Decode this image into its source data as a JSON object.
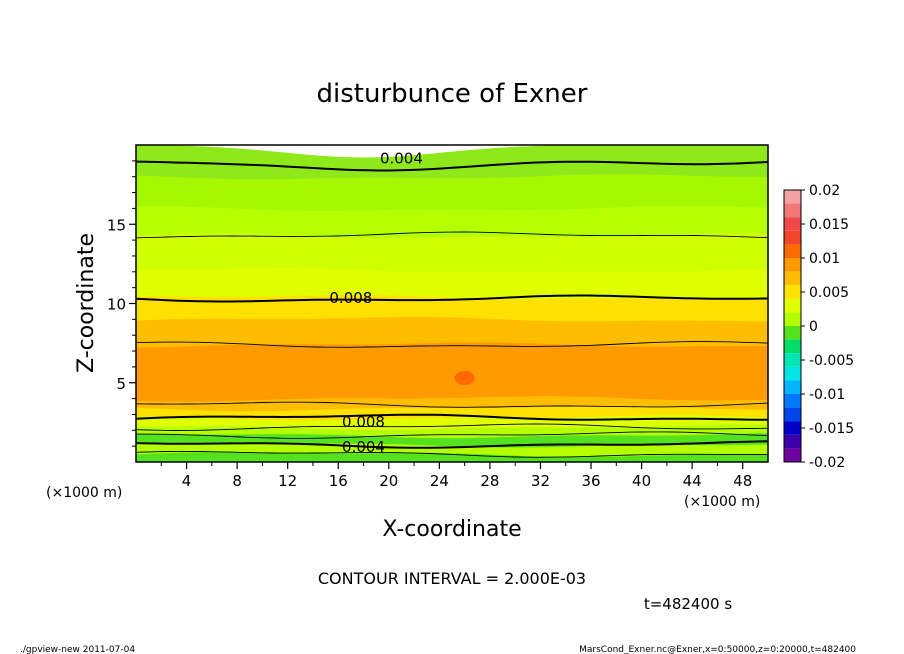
{
  "chart_data": {
    "type": "heatmap",
    "subtype": "filled-contour",
    "title": "disturbunce of Exner",
    "xlabel": "X-coordinate",
    "ylabel": "Z-coordinate",
    "x_unit": "(×1000 m)",
    "x_unit_right": "(×1000 m)",
    "xlim": [
      0,
      50
    ],
    "ylim": [
      0,
      20
    ],
    "x_ticks": [
      4,
      8,
      12,
      16,
      20,
      24,
      28,
      32,
      36,
      40,
      44,
      48
    ],
    "y_ticks": [
      5,
      10,
      15
    ],
    "contour_interval_text": "CONTOUR INTERVAL = 2.000E-03",
    "time_text": "t=482400 s",
    "contour_labels": [
      {
        "text": "0.004",
        "x": 21,
        "z": 19.2
      },
      {
        "text": "0.008",
        "x": 17,
        "z": 10.4
      },
      {
        "text": "0.008",
        "x": 18,
        "z": 2.6
      },
      {
        "text": "0.004",
        "x": 18,
        "z": 1.0
      }
    ],
    "colorbar": {
      "ticks": [
        "0.02",
        "0.015",
        "0.01",
        "0.005",
        "0",
        "-0.005",
        "-0.01",
        "-0.015",
        "-0.02"
      ],
      "levels": [
        {
          "from": 0.018,
          "to": 0.02,
          "color": "#f4a2a2"
        },
        {
          "from": 0.016,
          "to": 0.018,
          "color": "#f27878"
        },
        {
          "from": 0.014,
          "to": 0.016,
          "color": "#ef4848"
        },
        {
          "from": 0.012,
          "to": 0.014,
          "color": "#f1462a"
        },
        {
          "from": 0.01,
          "to": 0.012,
          "color": "#ff6a00"
        },
        {
          "from": 0.008,
          "to": 0.01,
          "color": "#ff9a00"
        },
        {
          "from": 0.006,
          "to": 0.008,
          "color": "#ffbd00"
        },
        {
          "from": 0.004,
          "to": 0.006,
          "color": "#ffe100"
        },
        {
          "from": 0.002,
          "to": 0.004,
          "color": "#e0ff00"
        },
        {
          "from": 0.0,
          "to": 0.002,
          "color": "#b4ff00"
        },
        {
          "from": -0.002,
          "to": 0.0,
          "color": "#55e21e"
        },
        {
          "from": -0.004,
          "to": -0.002,
          "color": "#00dc64"
        },
        {
          "from": -0.006,
          "to": -0.004,
          "color": "#00e6b4"
        },
        {
          "from": -0.008,
          "to": -0.006,
          "color": "#00e6e6"
        },
        {
          "from": -0.01,
          "to": -0.008,
          "color": "#00b4ff"
        },
        {
          "from": -0.012,
          "to": -0.01,
          "color": "#0078ff"
        },
        {
          "from": -0.014,
          "to": -0.012,
          "color": "#0046e6"
        },
        {
          "from": -0.016,
          "to": -0.014,
          "color": "#0000c8"
        },
        {
          "from": -0.018,
          "to": -0.016,
          "color": "#3c00aa"
        },
        {
          "from": -0.02,
          "to": -0.018,
          "color": "#6e00a0"
        }
      ]
    },
    "bands": [
      {
        "z_low": 0.0,
        "z_high": 0.5,
        "value_range": [
          0.0,
          0.002
        ],
        "color": "#55e21e"
      },
      {
        "z_low": 0.5,
        "z_high": 1.1,
        "value_range": [
          0.002,
          0.004
        ],
        "color": "#b4ff00"
      },
      {
        "z_low": 1.1,
        "z_high": 1.7,
        "value_range": [
          0.004,
          0.006
        ],
        "color": "#55e21e"
      },
      {
        "z_low": 1.7,
        "z_high": 2.2,
        "value_range": [
          0.004,
          0.006
        ],
        "color": "#b4ff00"
      },
      {
        "z_low": 2.2,
        "z_high": 2.8,
        "value_range": [
          0.006,
          0.008
        ],
        "color": "#e0ff00"
      },
      {
        "z_low": 2.8,
        "z_high": 3.4,
        "value_range": [
          0.006,
          0.008
        ],
        "color": "#ffe100"
      },
      {
        "z_low": 3.4,
        "z_high": 4.0,
        "value_range": [
          0.008,
          0.01
        ],
        "color": "#ffbd00"
      },
      {
        "z_low": 4.0,
        "z_high": 7.4,
        "value_range": [
          0.01,
          0.012
        ],
        "color": "#ff9a00"
      },
      {
        "z_low": 7.4,
        "z_high": 9.0,
        "value_range": [
          0.008,
          0.01
        ],
        "color": "#ffbd00"
      },
      {
        "z_low": 9.0,
        "z_high": 10.4,
        "value_range": [
          0.008,
          0.01
        ],
        "color": "#ffe100"
      },
      {
        "z_low": 10.4,
        "z_high": 12.1,
        "value_range": [
          0.006,
          0.008
        ],
        "color": "#e0ff00"
      },
      {
        "z_low": 12.1,
        "z_high": 14.3,
        "value_range": [
          0.004,
          0.006
        ],
        "color": "#cfff00"
      },
      {
        "z_low": 14.3,
        "z_high": 16.0,
        "value_range": [
          0.002,
          0.004
        ],
        "color": "#b4ff00"
      },
      {
        "z_low": 16.0,
        "z_high": 18.0,
        "value_range": [
          0.002,
          0.004
        ],
        "color": "#a6f800"
      },
      {
        "z_low": 18.0,
        "z_high": 20.0,
        "value_range": [
          0.0,
          0.002
        ],
        "color": "#8ee81a"
      }
    ],
    "contour_lines": [
      {
        "level": 0.004,
        "z": 0.5,
        "bold": false
      },
      {
        "level": 0.004,
        "z": 1.1,
        "bold": true
      },
      {
        "level": 0.006,
        "z": 1.7,
        "bold": false
      },
      {
        "level": 0.006,
        "z": 2.2,
        "bold": false
      },
      {
        "level": 0.008,
        "z": 2.8,
        "bold": true
      },
      {
        "level": 0.01,
        "z": 3.6,
        "bold": false
      },
      {
        "level": 0.01,
        "z": 7.4,
        "bold": false
      },
      {
        "level": 0.008,
        "z": 10.3,
        "bold": true
      },
      {
        "level": 0.006,
        "z": 14.3,
        "bold": false
      },
      {
        "level": 0.004,
        "z": 19.0,
        "bold": true
      }
    ],
    "max_spot": {
      "x": 26,
      "z": 5.3
    }
  },
  "footer": {
    "left": "./gpview-new  2011-07-04",
    "right": "MarsCond_Exner.nc@Exner,x=0:50000,z=0:20000,t=482400"
  }
}
